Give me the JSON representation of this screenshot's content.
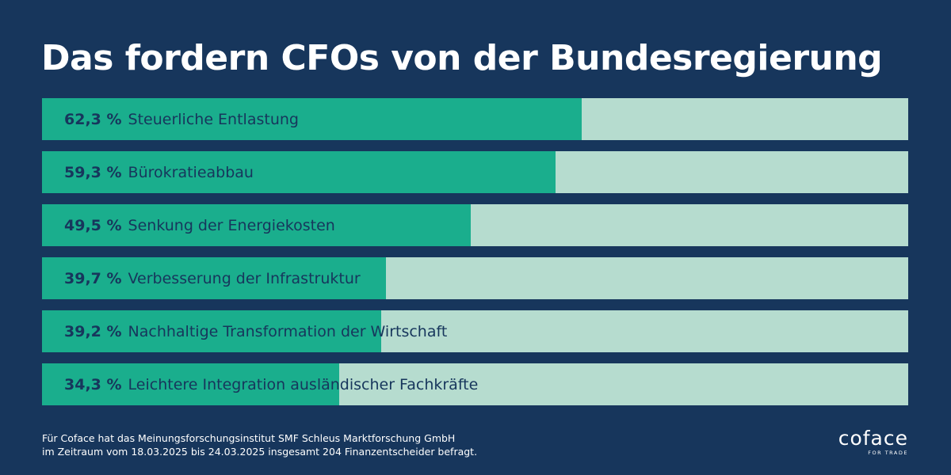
{
  "title": "Das fordern CFOs von der Bundesregierung",
  "colors": {
    "background": "#17365c",
    "bar_fill": "#1aae8d",
    "bar_track": "#b6dccf",
    "text_dark": "#17365c"
  },
  "chart_data": {
    "type": "bar",
    "orientation": "horizontal",
    "title": "Das fordern CFOs von der Bundesregierung",
    "xlim": [
      0,
      100
    ],
    "unit": "%",
    "grid": false,
    "legend": "none",
    "categories": [
      "Steuerliche Entlastung",
      "Bürokratieabbau",
      "Senkung der Energiekosten",
      "Verbesserung der Infrastruktur",
      "Nachhaltige Transformation der Wirtschaft",
      "Leichtere Integration ausländischer Fachkräfte"
    ],
    "values": [
      62.3,
      59.3,
      49.5,
      39.7,
      39.2,
      34.3
    ],
    "value_labels": [
      "62,3 %",
      "59,3 %",
      "49,5 %",
      "39,7 %",
      "39,2 %",
      "34,3 %"
    ]
  },
  "footnote": {
    "line1": "Für Coface hat das Meinungsforschungsinstitut SMF Schleus Marktforschung GmbH",
    "line2": "im Zeitraum vom 18.03.2025 bis 24.03.2025 insgesamt 204 Finanzentscheider befragt."
  },
  "logo": {
    "word": "coface",
    "tagline": "FOR TRADE"
  }
}
